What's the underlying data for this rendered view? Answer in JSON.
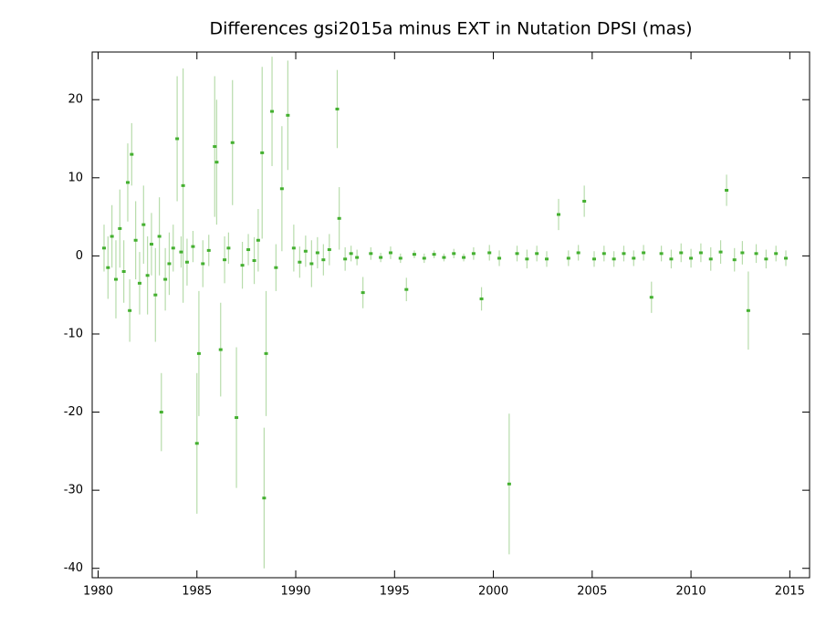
{
  "chart_data": {
    "type": "errorbar_scatter",
    "title": "Differences gsi2015a minus EXT in Nutation DPSI (mas)",
    "color": "#44b030",
    "error_color": "#b7dcab",
    "xlim": [
      1979.7,
      2016
    ],
    "ylim": [
      -41.2,
      26.1
    ],
    "xticks": [
      1980,
      1985,
      1990,
      1995,
      2000,
      2005,
      2010,
      2015
    ],
    "yticks": [
      -40,
      -30,
      -20,
      -10,
      0,
      10,
      20
    ],
    "x": [
      1980.3,
      1980.5,
      1980.7,
      1980.9,
      1981.1,
      1981.3,
      1981.5,
      1981.6,
      1981.7,
      1981.9,
      1982.1,
      1982.3,
      1982.5,
      1982.7,
      1982.9,
      1983.1,
      1983.2,
      1983.4,
      1983.6,
      1983.8,
      1984.0,
      1984.2,
      1984.3,
      1984.5,
      1984.8,
      1985.0,
      1985.1,
      1985.3,
      1985.6,
      1985.9,
      1986.0,
      1986.2,
      1986.4,
      1986.6,
      1986.8,
      1987.0,
      1987.3,
      1987.6,
      1987.9,
      1988.1,
      1988.3,
      1988.4,
      1988.5,
      1988.8,
      1989.0,
      1989.3,
      1989.6,
      1989.9,
      1990.2,
      1990.5,
      1990.8,
      1991.1,
      1991.4,
      1991.7,
      1992.1,
      1992.2,
      1992.5,
      1992.8,
      1993.1,
      1993.4,
      1993.8,
      1994.3,
      1994.8,
      1995.3,
      1995.6,
      1996.0,
      1996.5,
      1997.0,
      1997.5,
      1998.0,
      1998.5,
      1999.0,
      1999.4,
      1999.8,
      2000.3,
      2000.8,
      2001.2,
      2001.7,
      2002.2,
      2002.7,
      2003.3,
      2003.8,
      2004.3,
      2004.6,
      2005.1,
      2005.6,
      2006.1,
      2006.6,
      2007.1,
      2007.6,
      2008.0,
      2008.5,
      2009.0,
      2009.5,
      2010.0,
      2010.5,
      2011.0,
      2011.5,
      2011.8,
      2012.2,
      2012.6,
      2012.9,
      2013.3,
      2013.8,
      2014.3,
      2014.8
    ],
    "values": [
      1,
      -1.5,
      2.5,
      -3,
      3.5,
      -2,
      9.4,
      -7,
      13,
      2,
      -3.5,
      4,
      -2.5,
      1.5,
      -5,
      2.5,
      -20,
      -3,
      -1,
      1,
      15,
      0.5,
      9,
      -0.8,
      1.2,
      -24,
      -12.5,
      -1,
      0.7,
      14,
      12,
      -12,
      -0.5,
      1,
      14.5,
      -20.7,
      -1.2,
      0.8,
      -0.6,
      2,
      13.2,
      -31,
      -12.5,
      18.5,
      -1.5,
      8.6,
      18,
      1,
      -0.8,
      0.6,
      -1,
      0.4,
      -0.5,
      0.8,
      18.8,
      4.8,
      -0.4,
      0.3,
      -0.2,
      -4.7,
      0.3,
      -0.2,
      0.4,
      -0.3,
      -4.3,
      0.2,
      -0.3,
      0.2,
      -0.2,
      0.3,
      -0.2,
      0.3,
      -5.5,
      0.4,
      -0.3,
      -29.2,
      0.3,
      -0.4,
      0.3,
      -0.4,
      5.3,
      -0.3,
      0.4,
      7,
      -0.4,
      0.3,
      -0.4,
      0.3,
      -0.3,
      0.4,
      -5.3,
      0.3,
      -0.4,
      0.4,
      -0.3,
      0.4,
      -0.4,
      0.5,
      8.4,
      -0.5,
      0.4,
      -7,
      0.3,
      -0.4,
      0.3,
      -0.3
    ],
    "errors": [
      3,
      4,
      4,
      5,
      5,
      4,
      5,
      4,
      4,
      5,
      4,
      5,
      5,
      4,
      6,
      5,
      5,
      4,
      4,
      3,
      8,
      2,
      15,
      3,
      2,
      9,
      8,
      3,
      2,
      9,
      8,
      6,
      3,
      2,
      8,
      9,
      3,
      2,
      3,
      4,
      11,
      9,
      8,
      7,
      3,
      8,
      7,
      3,
      2,
      2,
      3,
      2,
      2,
      2,
      5,
      4,
      1.5,
      1,
      1,
      2,
      0.8,
      0.6,
      0.8,
      0.6,
      1.5,
      0.5,
      0.6,
      0.5,
      0.5,
      0.6,
      0.5,
      0.8,
      1.5,
      1,
      1,
      9,
      1,
      1.2,
      1,
      1,
      2,
      1,
      1,
      2,
      1,
      1,
      1,
      1,
      1,
      1,
      2,
      1,
      1.2,
      1.2,
      1.2,
      1.2,
      1.5,
      1.5,
      2,
      1.5,
      1.5,
      5,
      1.2,
      1.2,
      1,
      1
    ]
  }
}
